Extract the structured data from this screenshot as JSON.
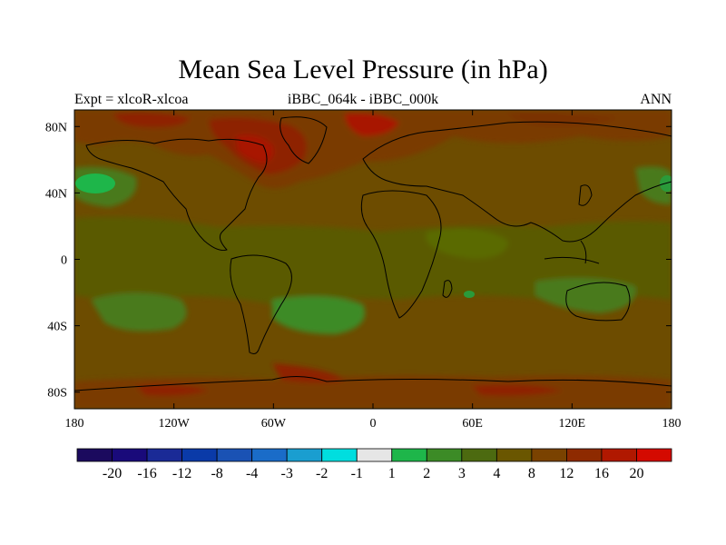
{
  "title": "Mean Sea Level Pressure (in hPa)",
  "subtitle_left": "Expt = xlcoR-xlcoa",
  "subtitle_center": "iBBC_064k - iBBC_000k",
  "subtitle_right": "ANN",
  "map": {
    "projection": "cylindrical equidistant",
    "lon_range": [
      -180,
      180
    ],
    "lat_range": [
      -90,
      90
    ],
    "x_ticks": [
      {
        "lon": -180,
        "label": "180"
      },
      {
        "lon": -120,
        "label": "120W"
      },
      {
        "lon": -60,
        "label": "60W"
      },
      {
        "lon": 0,
        "label": "0"
      },
      {
        "lon": 60,
        "label": "60E"
      },
      {
        "lon": 120,
        "label": "120E"
      },
      {
        "lon": 180,
        "label": "180"
      }
    ],
    "y_ticks": [
      {
        "lat": 80,
        "label": "80N"
      },
      {
        "lat": 40,
        "label": "40N"
      },
      {
        "lat": 0,
        "label": "0"
      },
      {
        "lat": -40,
        "label": "40S"
      },
      {
        "lat": -80,
        "label": "80S"
      }
    ],
    "background_level_color": "#6d4c00"
  },
  "colorbar": {
    "colors": [
      "#1b0a5e",
      "#190a7a",
      "#1a2a96",
      "#0a3aa8",
      "#1a52b4",
      "#1a6cc8",
      "#1a9ed0",
      "#00dedf",
      "#e6e6e6",
      "#1eb64a",
      "#3c8b26",
      "#4c6a10",
      "#6a5600",
      "#7a4200",
      "#8e2a00",
      "#b01800",
      "#d40a00"
    ],
    "labels": [
      "-20",
      "-16",
      "-12",
      "-8",
      "-4",
      "-3",
      "-2",
      "-1",
      "1",
      "2",
      "3",
      "4",
      "8",
      "12",
      "16",
      "20"
    ]
  }
}
